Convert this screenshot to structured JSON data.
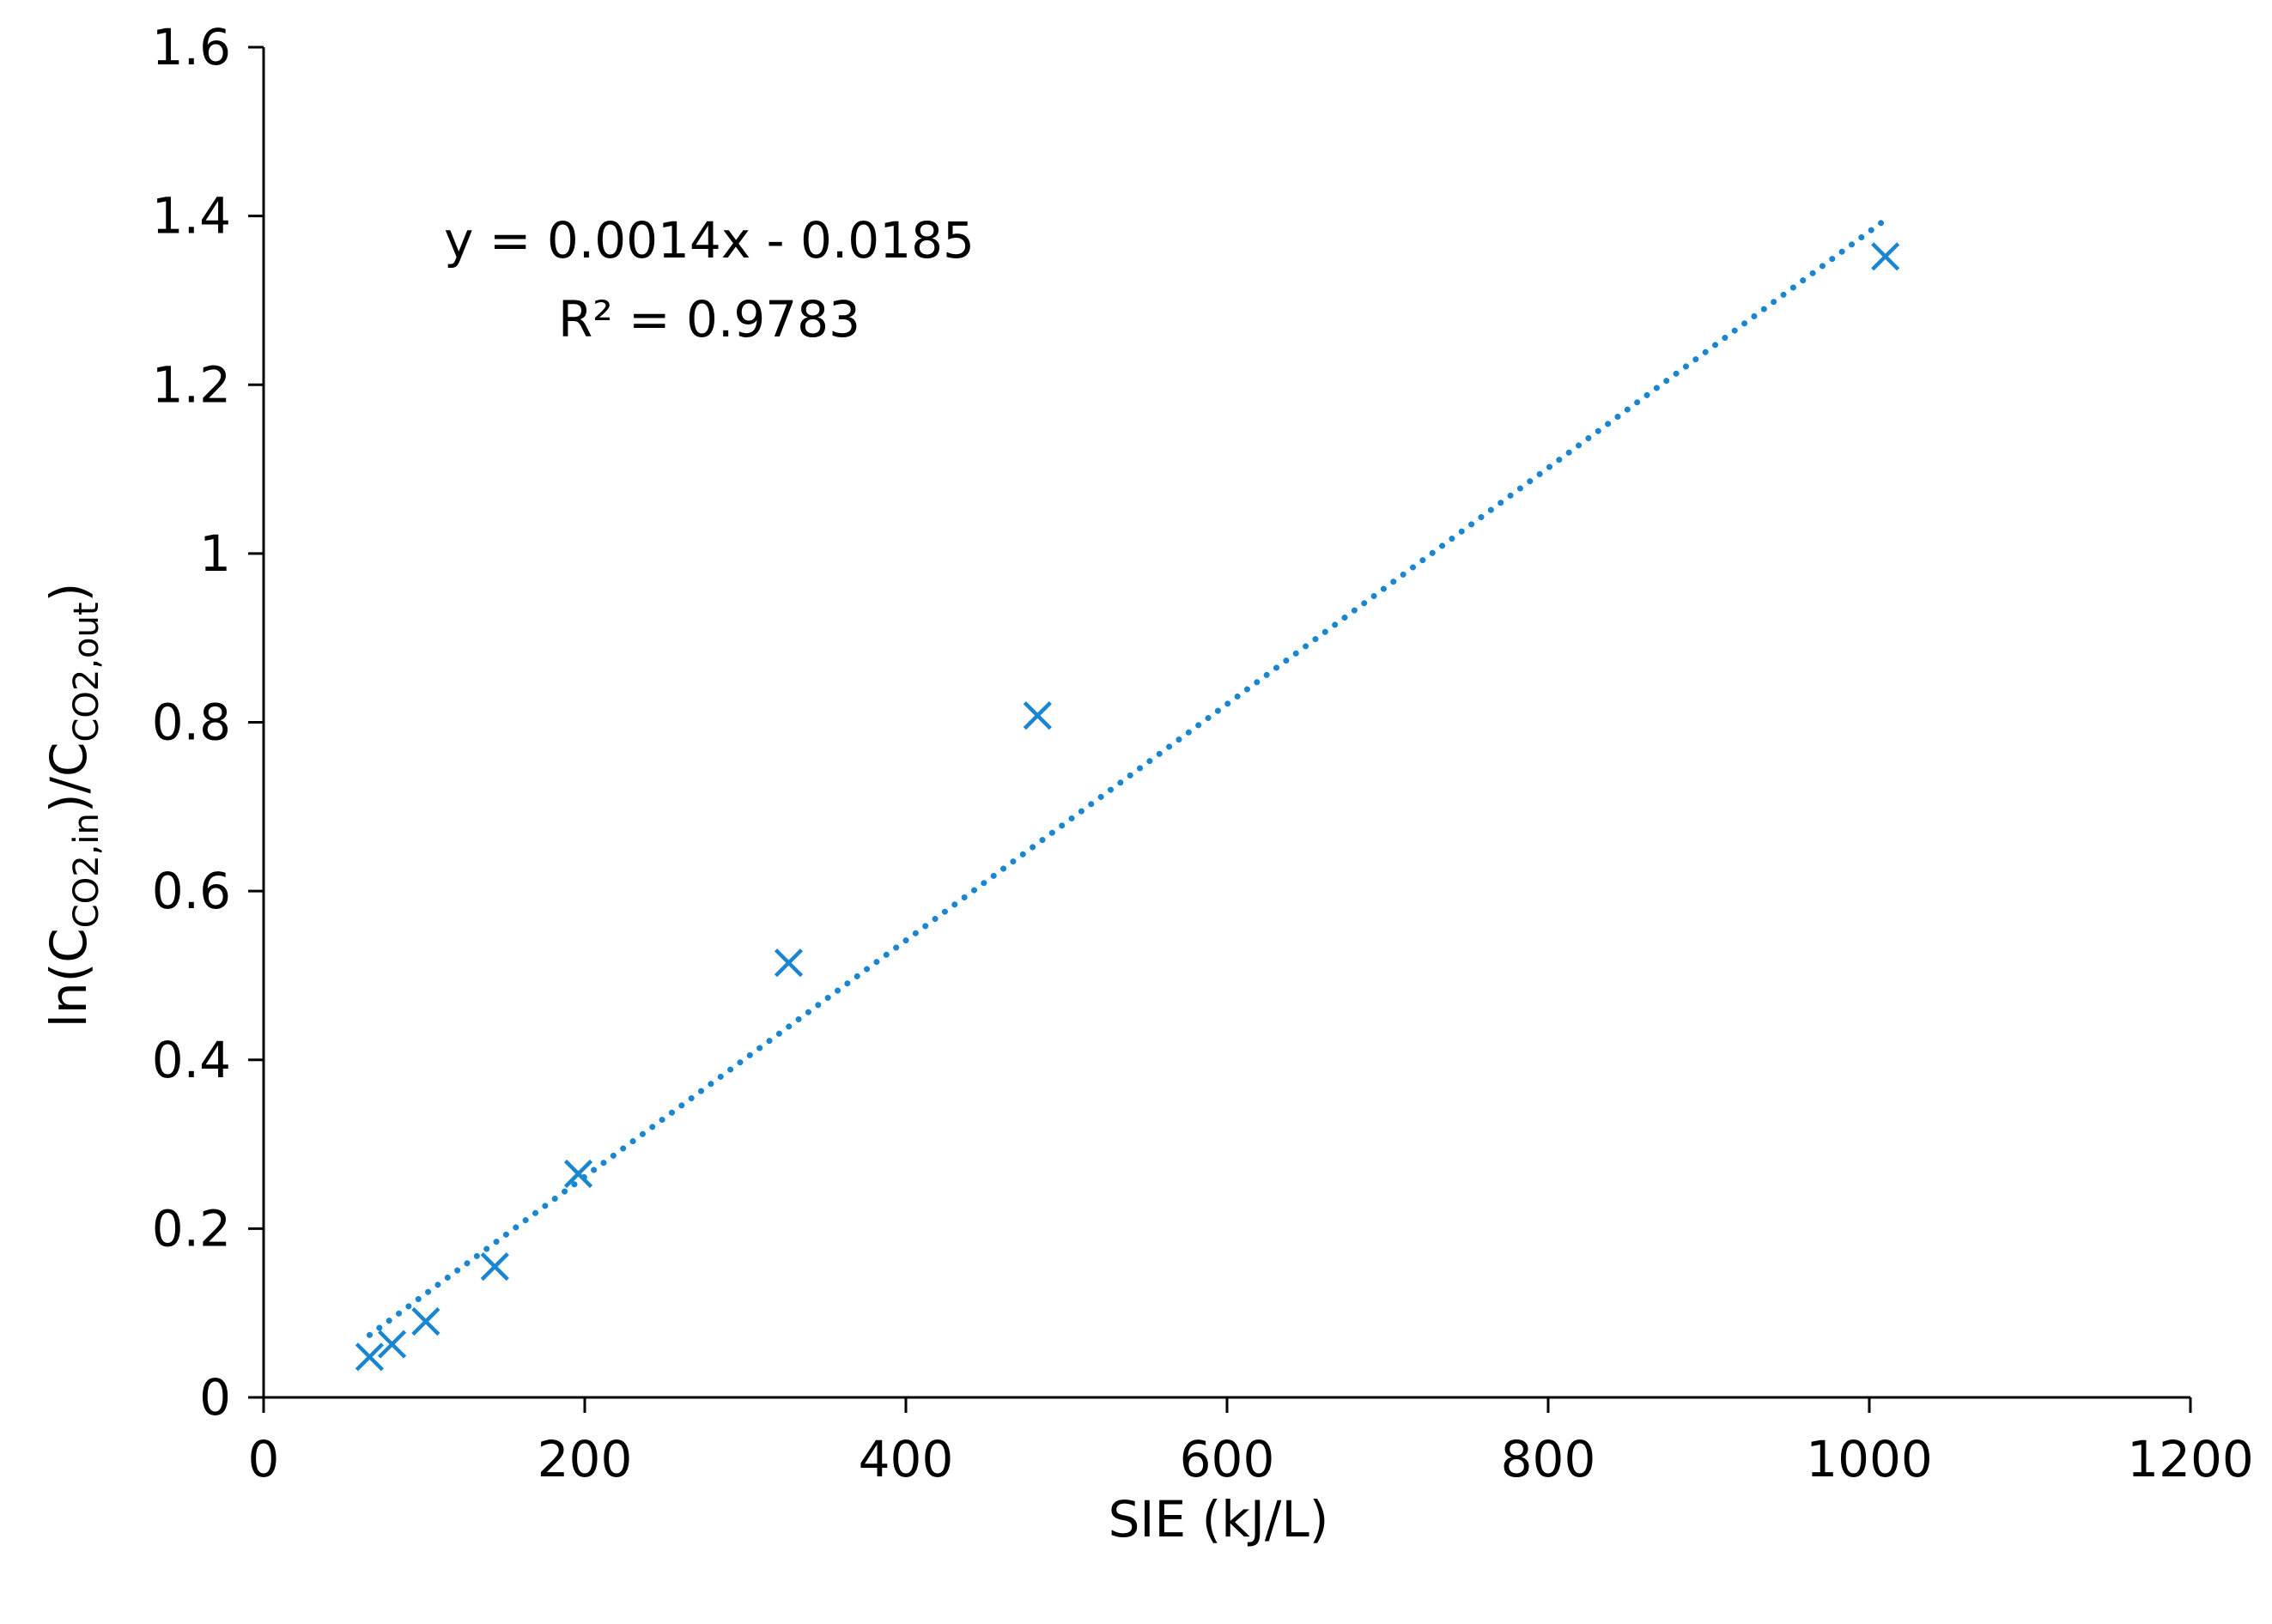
{
  "chart_data": {
    "type": "scatter",
    "title": "",
    "xlabel": "SIE (kJ/L)",
    "ylabel": {
      "prefix": "ln(C",
      "sub1": "CO2,in",
      "middle": ")/C",
      "sub2": "CO2,out",
      "suffix": ")"
    },
    "xlim": [
      0,
      1200
    ],
    "ylim": [
      0,
      1.6
    ],
    "xticks": [
      0,
      200,
      400,
      600,
      800,
      1000,
      1200
    ],
    "yticks": [
      0,
      0.2,
      0.4,
      0.6,
      0.8,
      1.0,
      1.2,
      1.4,
      1.6
    ],
    "xtick_labels": [
      "0",
      "200",
      "400",
      "600",
      "800",
      "1000",
      "1200"
    ],
    "ytick_labels": [
      "0",
      "0.2",
      "0.4",
      "0.6",
      "0.8",
      "1",
      "1.2",
      "1.4",
      "1.6"
    ],
    "grid": false,
    "legend": "none",
    "marker": "x",
    "color": "#1a86d0",
    "series": [
      {
        "x": [
          66,
          80,
          101,
          144,
          196,
          327,
          482,
          1010
        ],
        "y": [
          0.048,
          0.063,
          0.09,
          0.155,
          0.265,
          0.515,
          0.808,
          1.352
        ]
      }
    ],
    "trendline": {
      "style": "dotted",
      "slope": 0.0014,
      "intercept": -0.0185,
      "x_range": [
        66,
        1010
      ]
    },
    "annotation": {
      "equation": "y = 0.0014x - 0.0185",
      "r_squared": "R² = 0.9783"
    }
  }
}
